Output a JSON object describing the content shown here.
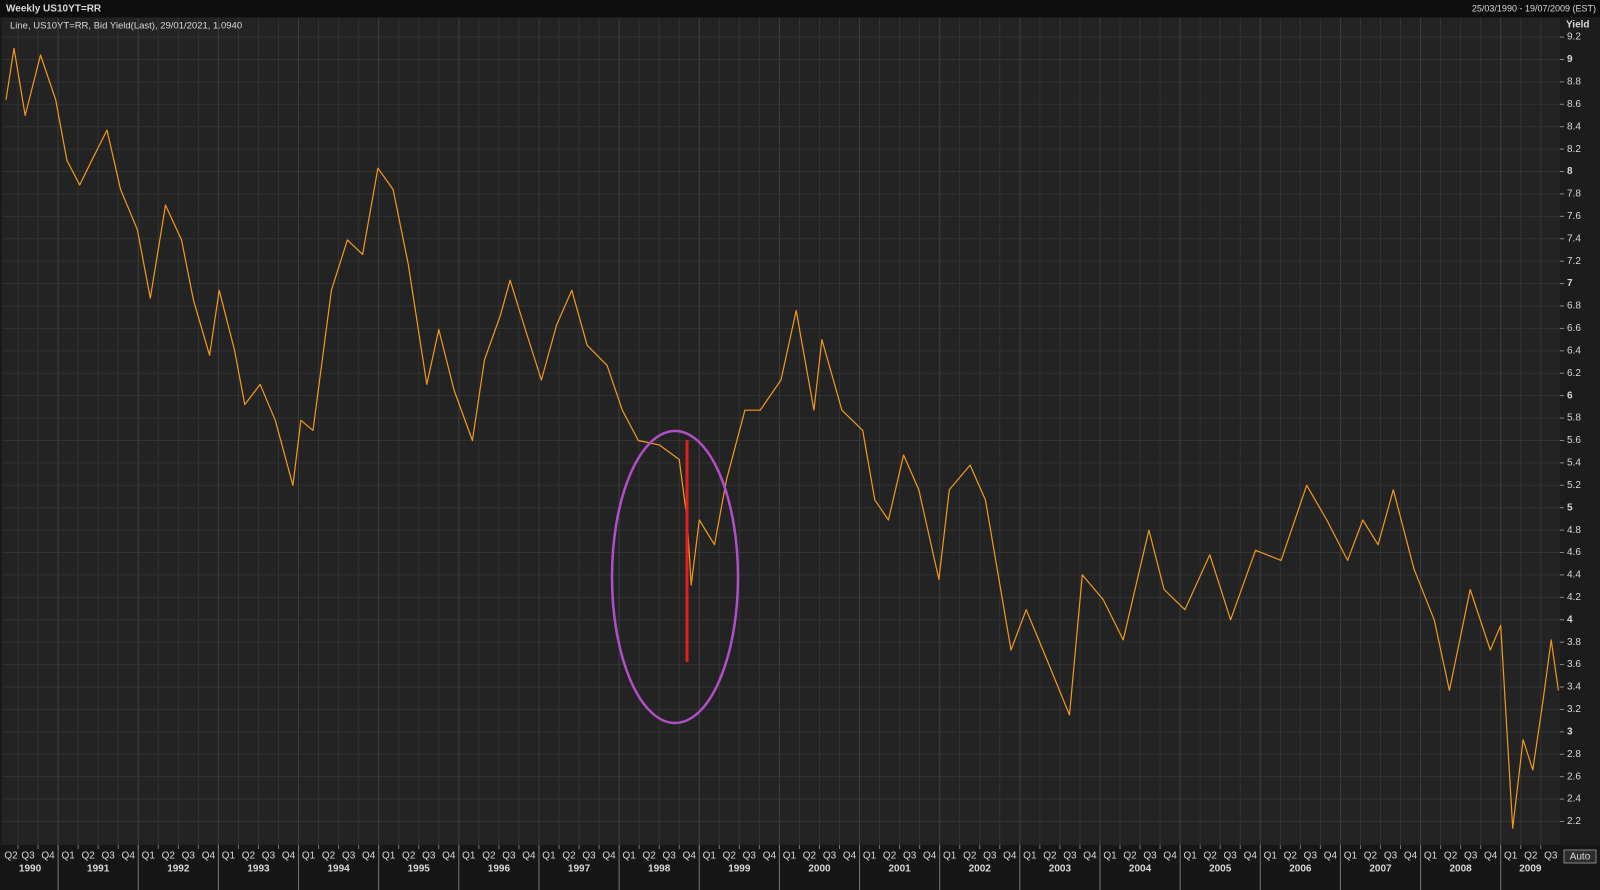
{
  "chart_data": {
    "type": "line",
    "title": "Weekly US10YT=RR",
    "date_range": "25/03/1990 - 19/07/2009 (EST)",
    "y_label": "Yield",
    "scale_mode": "Auto",
    "grid": true,
    "x": [
      1990.35,
      1990.45,
      1990.59,
      1990.78,
      1990.97,
      1991.11,
      1991.27,
      1991.42,
      1991.61,
      1991.78,
      1991.99,
      1992.15,
      1992.34,
      1992.54,
      1992.69,
      1992.89,
      1993.01,
      1993.2,
      1993.33,
      1993.52,
      1993.71,
      1993.93,
      1994.03,
      1994.18,
      1994.41,
      1994.61,
      1994.8,
      1994.99,
      1995.18,
      1995.37,
      1995.6,
      1995.75,
      1995.94,
      1996.17,
      1996.32,
      1996.52,
      1996.64,
      1996.83,
      1997.03,
      1997.22,
      1997.41,
      1997.6,
      1997.85,
      1998.04,
      1998.24,
      1998.5,
      1998.75,
      1998.85,
      1998.9,
      1999.0,
      1999.19,
      1999.34,
      1999.57,
      1999.76,
      2000.02,
      2000.21,
      2000.43,
      2000.53,
      2000.78,
      2001.04,
      2001.19,
      2001.36,
      2001.55,
      2001.74,
      2001.99,
      2002.12,
      2002.38,
      2002.57,
      2002.89,
      2003.08,
      2003.34,
      2003.62,
      2003.78,
      2004.04,
      2004.29,
      2004.61,
      2004.8,
      2005.06,
      2005.37,
      2005.63,
      2005.94,
      2006.26,
      2006.58,
      2006.83,
      2007.09,
      2007.28,
      2007.47,
      2007.66,
      2007.92,
      2008.17,
      2008.36,
      2008.62,
      2008.87,
      2009.0,
      2009.15,
      2009.28,
      2009.4,
      2009.53,
      2009.63,
      2009.72
    ],
    "series": [
      {
        "name": "Line, US10YT=RR, Bid Yield(Last), 29/01/2021, 1.0940",
        "color": "#f39a1e",
        "values": [
          8.64,
          9.1,
          8.5,
          9.04,
          8.64,
          8.1,
          7.88,
          8.1,
          8.37,
          7.84,
          7.48,
          6.87,
          7.7,
          7.39,
          6.85,
          6.36,
          6.94,
          6.41,
          5.92,
          6.1,
          5.78,
          5.2,
          5.78,
          5.69,
          6.94,
          7.39,
          7.26,
          8.03,
          7.84,
          7.17,
          6.1,
          6.59,
          6.05,
          5.6,
          6.32,
          6.72,
          7.03,
          6.59,
          6.14,
          6.63,
          6.94,
          6.45,
          6.27,
          5.87,
          5.6,
          5.56,
          5.43,
          4.89,
          4.31,
          4.89,
          4.67,
          5.25,
          5.87,
          5.87,
          6.14,
          6.76,
          5.87,
          6.5,
          5.87,
          5.69,
          5.07,
          4.89,
          5.47,
          5.16,
          4.36,
          5.16,
          5.38,
          5.07,
          3.73,
          4.09,
          3.64,
          3.15,
          4.4,
          4.18,
          3.82,
          4.8,
          4.27,
          4.09,
          4.58,
          4.0,
          4.62,
          4.53,
          5.2,
          4.89,
          4.53,
          4.89,
          4.67,
          5.16,
          4.45,
          4.0,
          3.37,
          4.27,
          3.73,
          3.95,
          2.14,
          2.93,
          2.66,
          3.29,
          3.82,
          3.37
        ]
      }
    ],
    "xlim": [
      1990.3,
      2009.74
    ],
    "ylim": [
      1.99,
      9.37
    ],
    "yticks": [
      2.2,
      2.4,
      2.6,
      2.8,
      3,
      3.2,
      3.4,
      3.6,
      3.8,
      4,
      4.2,
      4.4,
      4.6,
      4.8,
      5,
      5.2,
      5.4,
      5.6,
      5.8,
      6,
      6.2,
      6.4,
      6.6,
      6.8,
      7,
      7.2,
      7.4,
      7.6,
      7.8,
      8,
      8.2,
      8.4,
      8.6,
      8.8,
      9,
      9.2
    ],
    "xticks": [
      {
        "value": 1990.25,
        "label": "Q2"
      },
      {
        "value": 1990.5,
        "label": "Q3"
      },
      {
        "value": 1990.75,
        "label": "Q4"
      },
      {
        "value": 1991,
        "label": "Q1"
      },
      {
        "value": 1991.25,
        "label": "Q2"
      },
      {
        "value": 1991.5,
        "label": "Q3"
      },
      {
        "value": 1991.75,
        "label": "Q4"
      },
      {
        "value": 1992,
        "label": "Q1"
      },
      {
        "value": 1992.25,
        "label": "Q2"
      },
      {
        "value": 1992.5,
        "label": "Q3"
      },
      {
        "value": 1992.75,
        "label": "Q4"
      },
      {
        "value": 1993,
        "label": "Q1"
      },
      {
        "value": 1993.25,
        "label": "Q2"
      },
      {
        "value": 1993.5,
        "label": "Q3"
      },
      {
        "value": 1993.75,
        "label": "Q4"
      },
      {
        "value": 1994,
        "label": "Q1"
      },
      {
        "value": 1994.25,
        "label": "Q2"
      },
      {
        "value": 1994.5,
        "label": "Q3"
      },
      {
        "value": 1994.75,
        "label": "Q4"
      },
      {
        "value": 1995,
        "label": "Q1"
      },
      {
        "value": 1995.25,
        "label": "Q2"
      },
      {
        "value": 1995.5,
        "label": "Q3"
      },
      {
        "value": 1995.75,
        "label": "Q4"
      },
      {
        "value": 1996,
        "label": "Q1"
      },
      {
        "value": 1996.25,
        "label": "Q2"
      },
      {
        "value": 1996.5,
        "label": "Q3"
      },
      {
        "value": 1996.75,
        "label": "Q4"
      },
      {
        "value": 1997,
        "label": "Q1"
      },
      {
        "value": 1997.25,
        "label": "Q2"
      },
      {
        "value": 1997.5,
        "label": "Q3"
      },
      {
        "value": 1997.75,
        "label": "Q4"
      },
      {
        "value": 1998,
        "label": "Q1"
      },
      {
        "value": 1998.25,
        "label": "Q2"
      },
      {
        "value": 1998.5,
        "label": "Q3"
      },
      {
        "value": 1998.75,
        "label": "Q4"
      },
      {
        "value": 1999,
        "label": "Q1"
      },
      {
        "value": 1999.25,
        "label": "Q2"
      },
      {
        "value": 1999.5,
        "label": "Q3"
      },
      {
        "value": 1999.75,
        "label": "Q4"
      },
      {
        "value": 2000,
        "label": "Q1"
      },
      {
        "value": 2000.25,
        "label": "Q2"
      },
      {
        "value": 2000.5,
        "label": "Q3"
      },
      {
        "value": 2000.75,
        "label": "Q4"
      },
      {
        "value": 2001,
        "label": "Q1"
      },
      {
        "value": 2001.25,
        "label": "Q2"
      },
      {
        "value": 2001.5,
        "label": "Q3"
      },
      {
        "value": 2001.75,
        "label": "Q4"
      },
      {
        "value": 2002,
        "label": "Q1"
      },
      {
        "value": 2002.25,
        "label": "Q2"
      },
      {
        "value": 2002.5,
        "label": "Q3"
      },
      {
        "value": 2002.75,
        "label": "Q4"
      },
      {
        "value": 2003,
        "label": "Q1"
      },
      {
        "value": 2003.25,
        "label": "Q2"
      },
      {
        "value": 2003.5,
        "label": "Q3"
      },
      {
        "value": 2003.75,
        "label": "Q4"
      },
      {
        "value": 2004,
        "label": "Q1"
      },
      {
        "value": 2004.25,
        "label": "Q2"
      },
      {
        "value": 2004.5,
        "label": "Q3"
      },
      {
        "value": 2004.75,
        "label": "Q4"
      },
      {
        "value": 2005,
        "label": "Q1"
      },
      {
        "value": 2005.25,
        "label": "Q2"
      },
      {
        "value": 2005.5,
        "label": "Q3"
      },
      {
        "value": 2005.75,
        "label": "Q4"
      },
      {
        "value": 2006,
        "label": "Q1"
      },
      {
        "value": 2006.25,
        "label": "Q2"
      },
      {
        "value": 2006.5,
        "label": "Q3"
      },
      {
        "value": 2006.75,
        "label": "Q4"
      },
      {
        "value": 2007,
        "label": "Q1"
      },
      {
        "value": 2007.25,
        "label": "Q2"
      },
      {
        "value": 2007.5,
        "label": "Q3"
      },
      {
        "value": 2007.75,
        "label": "Q4"
      },
      {
        "value": 2008,
        "label": "Q1"
      },
      {
        "value": 2008.25,
        "label": "Q2"
      },
      {
        "value": 2008.5,
        "label": "Q3"
      },
      {
        "value": 2008.75,
        "label": "Q4"
      },
      {
        "value": 2009,
        "label": "Q1"
      },
      {
        "value": 2009.25,
        "label": "Q2"
      },
      {
        "value": 2009.5,
        "label": "Q3"
      }
    ],
    "year_ticks": [
      1990,
      1991,
      1992,
      1993,
      1994,
      1995,
      1996,
      1997,
      1998,
      1999,
      2000,
      2001,
      2002,
      2003,
      2004,
      2005,
      2006,
      2007,
      2008,
      2009
    ]
  }
}
